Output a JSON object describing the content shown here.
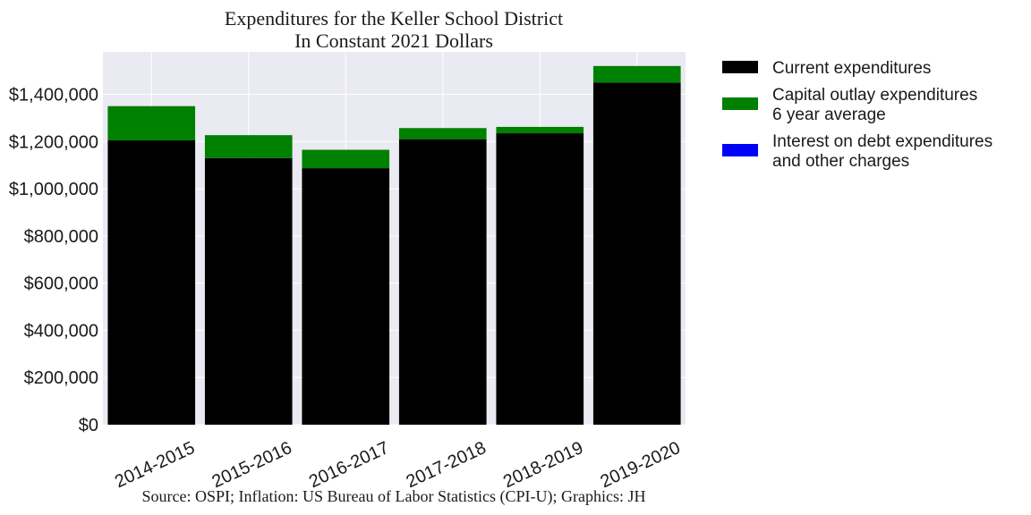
{
  "chart_data": {
    "type": "bar",
    "stacked": true,
    "title": "Expenditures for the Keller School District",
    "subtitle": "In Constant 2021 Dollars",
    "source": "Source: OSPI; Inflation: US Bureau of Labor Statistics (CPI-U); Graphics: JH",
    "xlabel": "",
    "ylabel": "",
    "categories": [
      "2014-2015",
      "2015-2016",
      "2016-2017",
      "2017-2018",
      "2018-2019",
      "2019-2020"
    ],
    "series": [
      {
        "name": "Current expenditures",
        "color": "#000000",
        "values": [
          1205000,
          1130000,
          1087000,
          1210000,
          1235000,
          1450000
        ]
      },
      {
        "name": "Capital outlay expenditures\n6 year average",
        "color": "#008000",
        "values": [
          145000,
          97000,
          78000,
          47000,
          27000,
          70000
        ]
      },
      {
        "name": "Interest on debt expenditures\nand other charges",
        "color": "#0000ff",
        "values": [
          0,
          0,
          0,
          0,
          0,
          0
        ]
      }
    ],
    "ylim": [
      0,
      1580000
    ],
    "yticks": [
      0,
      200000,
      400000,
      600000,
      800000,
      1000000,
      1200000,
      1400000
    ],
    "ytick_labels": [
      "$0",
      "$200,000",
      "$400,000",
      "$600,000",
      "$800,000",
      "$1,000,000",
      "$1,200,000",
      "$1,400,000"
    ],
    "grid": true,
    "legend_position": "outside-right"
  }
}
